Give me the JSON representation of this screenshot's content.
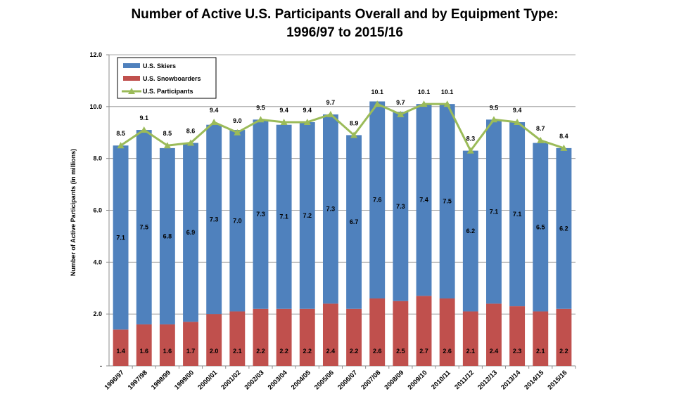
{
  "chart_data": {
    "type": "bar",
    "stacked": true,
    "title_line1": "Number of Active U.S. Participants Overall and by Equipment Type:",
    "title_line2": "1996/97 to 2015/16",
    "ylabel": "Number of Active Participants (in millions)",
    "ylim": [
      0,
      12
    ],
    "yticks": [
      "-",
      "2.0",
      "4.0",
      "6.0",
      "8.0",
      "10.0",
      "12.0"
    ],
    "grid": true,
    "legend_position": "top-left",
    "categories": [
      "1996/97",
      "1997/98",
      "1998/99",
      "1999/00",
      "2000/01",
      "2001/02",
      "2002/03",
      "2003/04",
      "2004/05",
      "2005/06",
      "2006/07",
      "2007/08",
      "2008/09",
      "2009/10",
      "2010/11",
      "2011/12",
      "2012/13",
      "2013/14",
      "2014/15",
      "2015/16"
    ],
    "series": [
      {
        "name": "U.S. Snowboarders",
        "kind": "bar",
        "color": "#C0504D",
        "values": [
          1.4,
          1.6,
          1.6,
          1.7,
          2.0,
          2.1,
          2.2,
          2.2,
          2.2,
          2.4,
          2.2,
          2.6,
          2.5,
          2.7,
          2.6,
          2.1,
          2.4,
          2.3,
          2.1,
          2.2
        ]
      },
      {
        "name": "U.S. Skiers",
        "kind": "bar",
        "color": "#4F81BD",
        "values": [
          7.1,
          7.5,
          6.8,
          6.9,
          7.3,
          7.0,
          7.3,
          7.1,
          7.2,
          7.3,
          6.7,
          7.6,
          7.3,
          7.4,
          7.5,
          6.2,
          7.1,
          7.1,
          6.5,
          6.2
        ]
      },
      {
        "name": "U.S. Participants",
        "kind": "line",
        "color": "#9BBB59",
        "values": [
          8.5,
          9.1,
          8.5,
          8.6,
          9.4,
          9.0,
          9.5,
          9.4,
          9.4,
          9.7,
          8.9,
          10.1,
          9.7,
          10.1,
          10.1,
          8.3,
          9.5,
          9.4,
          8.7,
          8.4
        ]
      }
    ],
    "legend_order": [
      "U.S. Skiers",
      "U.S. Snowboarders",
      "U.S. Participants"
    ]
  }
}
